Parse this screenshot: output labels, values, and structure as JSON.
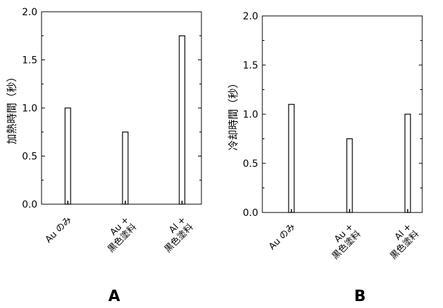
{
  "chart_data": [
    {
      "type": "bar",
      "panel_label": "A",
      "categories": [
        {
          "lines": [
            "Au のみ"
          ]
        },
        {
          "lines": [
            "Au +",
            "黒色塗料"
          ]
        },
        {
          "lines": [
            "Al +",
            "黒色塗料"
          ]
        }
      ],
      "values": [
        1.0,
        0.75,
        1.75
      ],
      "xlabel": "",
      "ylabel": "加熱時間（秒）",
      "ylim": [
        0.0,
        2.0
      ],
      "yticks": [
        "0.0",
        "0.5",
        "1.0",
        "1.5",
        "2.0"
      ],
      "grid": false,
      "bar_fill": "#ffffff",
      "bar_stroke": "#000000"
    },
    {
      "type": "bar",
      "panel_label": "B",
      "categories": [
        {
          "lines": [
            "Au のみ"
          ]
        },
        {
          "lines": [
            "Au +",
            "黒色塗料"
          ]
        },
        {
          "lines": [
            "Al +",
            "黒色塗料"
          ]
        }
      ],
      "values": [
        1.1,
        0.75,
        1.0
      ],
      "xlabel": "",
      "ylabel": "冷却時間（秒）",
      "ylim": [
        0.0,
        2.0
      ],
      "yticks": [
        "0.0",
        "0.5",
        "1.0",
        "1.5",
        "2.0"
      ],
      "grid": false,
      "bar_fill": "#ffffff",
      "bar_stroke": "#000000"
    }
  ]
}
